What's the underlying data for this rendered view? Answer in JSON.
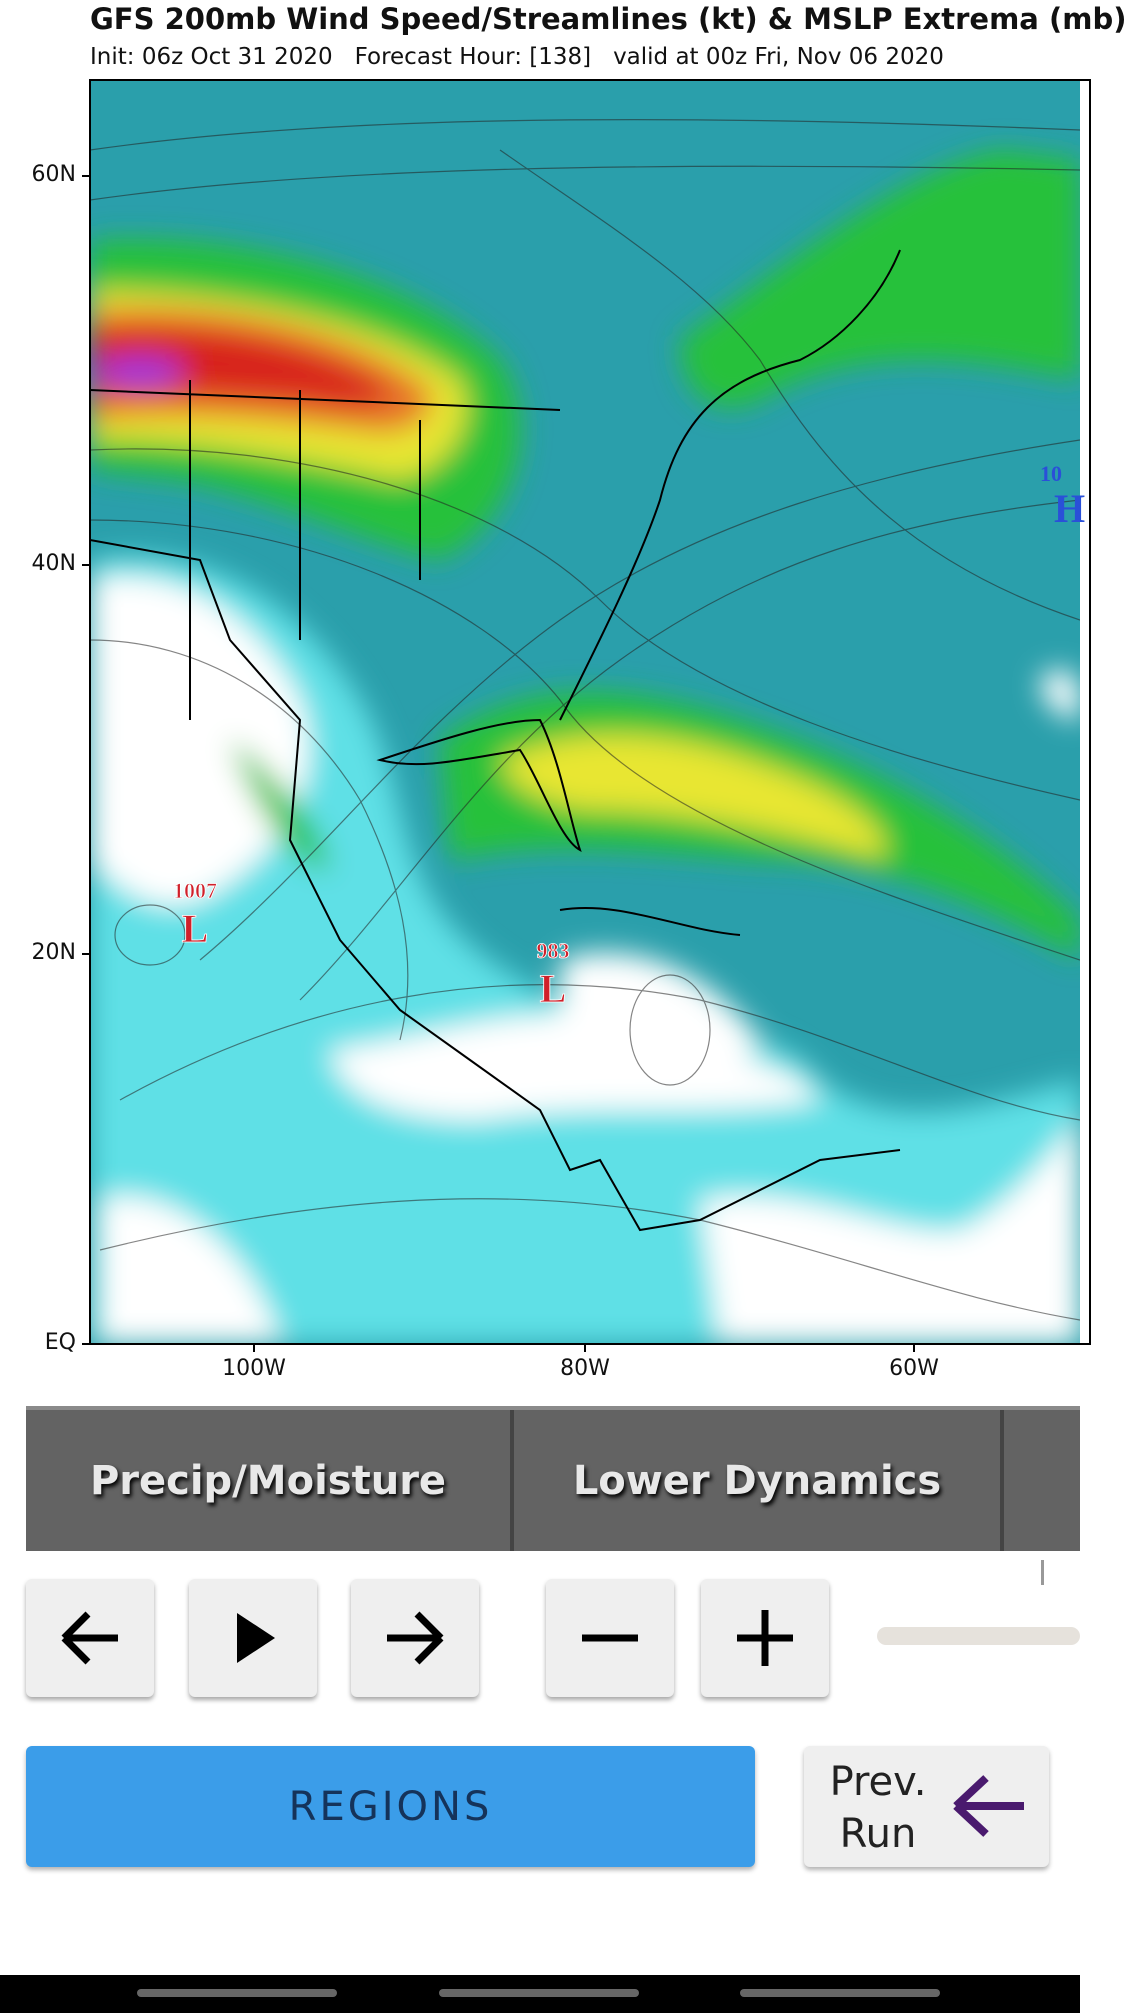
{
  "header": {
    "title": "GFS 200mb Wind Speed/Streamlines (kt) & MSLP Extrema (mb)",
    "subtitle": "Init: 06z Oct 31 2020   Forecast Hour: [138]   valid at 00z Fri, Nov 06 2020"
  },
  "map": {
    "lat_labels": [
      "60N",
      "40N",
      "20N",
      "EQ"
    ],
    "lon_labels": [
      "100W",
      "80W",
      "60W"
    ],
    "pressure_labels": [
      {
        "value": "1007",
        "symbol": "L"
      },
      {
        "value": "983",
        "symbol": "L"
      },
      {
        "value": "10",
        "symbol": "H"
      }
    ]
  },
  "tabs": [
    "Precip/Moisture",
    "Lower Dynamics"
  ],
  "buttons": {
    "regions": "REGIONS",
    "prev_run": "Prev. Run"
  }
}
